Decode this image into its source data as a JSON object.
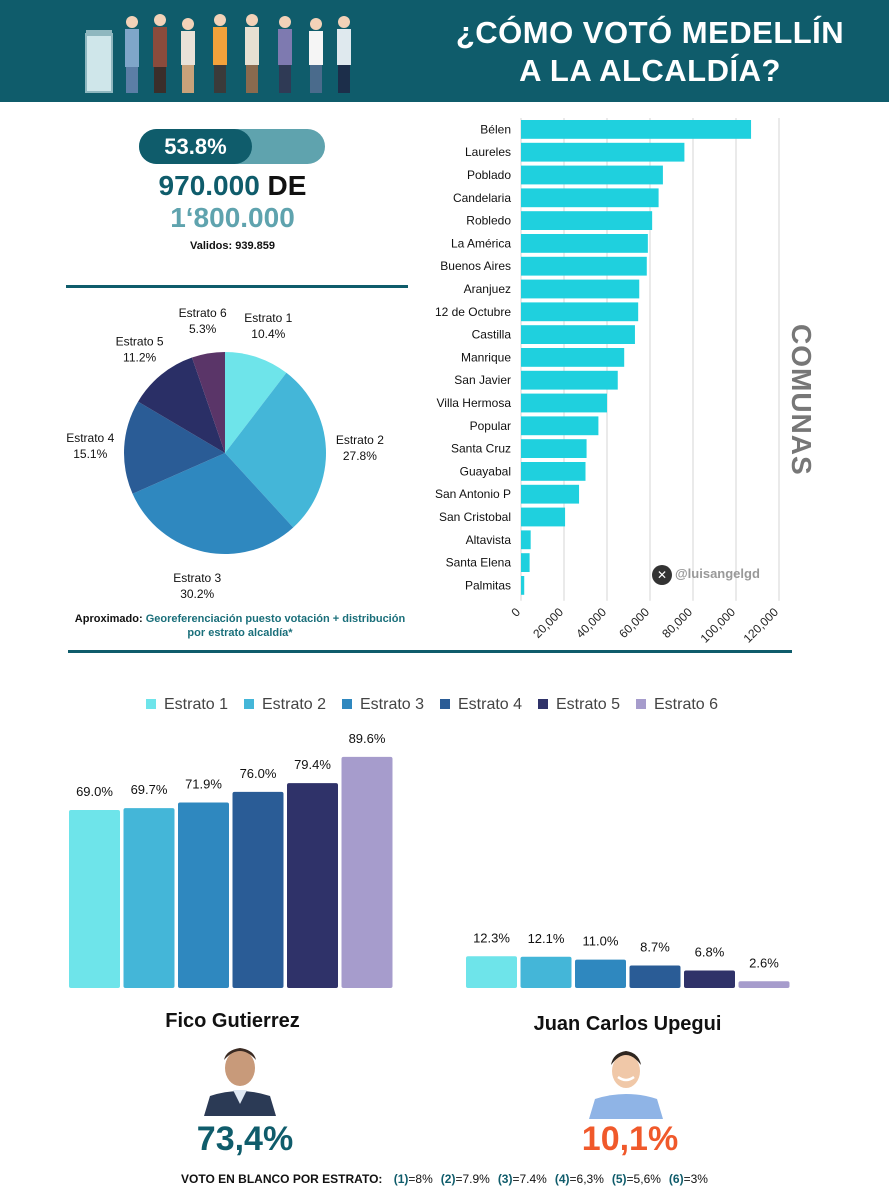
{
  "header": {
    "title_line1": "¿CÓMO VOTÓ MEDELLÍN",
    "title_line2": "A LA ALCALDÍA?"
  },
  "turnout": {
    "percent_label": "53.8%",
    "percent_value": 53.8,
    "votes": "970.000",
    "de": "DE",
    "total": "1‘800.000",
    "valid": "Validos: 939.859"
  },
  "note": {
    "prefix": "Aproximado:",
    "text": "Georeferenciación puesto votación + distribución por estrato alcaldía*"
  },
  "handle": "@luisangelgd",
  "handle_icon": "x-logo-icon",
  "comunas_label": "COMUNAS",
  "colors": {
    "header": "#0f5c6b",
    "bar_cyan": "#1fd0de",
    "fico_pct": "#0f5c6b",
    "upegui_pct": "#f0592b"
  },
  "chart_data": [
    {
      "type": "pie",
      "categories": [
        "Estrato 1",
        "Estrato 2",
        "Estrato 3",
        "Estrato 4",
        "Estrato 5",
        "Estrato 6"
      ],
      "labels": [
        "10.4%",
        "27.8%",
        "30.2%",
        "15.1%",
        "11.2%",
        "5.3%"
      ],
      "values": [
        10.4,
        27.8,
        30.2,
        15.1,
        11.2,
        5.3
      ],
      "colors": [
        "#6ee4ea",
        "#44b6d8",
        "#2f88bf",
        "#2a5c96",
        "#2a2f66",
        "#5a3568"
      ]
    },
    {
      "type": "bar",
      "orientation": "horizontal",
      "categories": [
        "Bélen",
        "Laureles",
        "Poblado",
        "Candelaria",
        "Robledo",
        "La América",
        "Buenos Aires",
        "Aranjuez",
        "12 de Octubre",
        "Castilla",
        "Manrique",
        "San Javier",
        "Villa Hermosa",
        "Popular",
        "Santa Cruz",
        "Guayabal",
        "San Antonio P",
        "San Cristobal",
        "Altavista",
        "Santa Elena",
        "Palmitas"
      ],
      "values": [
        107000,
        76000,
        66000,
        64000,
        61000,
        59000,
        58500,
        55000,
        54500,
        53000,
        48000,
        45000,
        40000,
        36000,
        30500,
        30000,
        27000,
        20500,
        4500,
        4000,
        1500
      ],
      "xticks": [
        "0",
        "20,000",
        "40,000",
        "60,000",
        "80,000",
        "100,000",
        "120,000"
      ],
      "xlim": [
        0,
        120000
      ],
      "ylabel": "COMUNAS",
      "grid": "vertical",
      "color": "#1fd0de"
    },
    {
      "type": "bar",
      "title": "Fico Gutierrez",
      "categories": [
        "Estrato 1",
        "Estrato 2",
        "Estrato 3",
        "Estrato 4",
        "Estrato 5",
        "Estrato 6"
      ],
      "values": [
        69.0,
        69.7,
        71.9,
        76.0,
        79.4,
        89.6
      ],
      "labels": [
        "69.0%",
        "69.7%",
        "71.9%",
        "76.0%",
        "79.4%",
        "89.6%"
      ],
      "colors": [
        "#6ee4ea",
        "#44b6d8",
        "#2f88bf",
        "#2a5c96",
        "#2f3269",
        "#a69ccc"
      ],
      "ylim": [
        0,
        100
      ],
      "total": "73,4%"
    },
    {
      "type": "bar",
      "title": "Juan Carlos Upegui",
      "categories": [
        "Estrato 1",
        "Estrato 2",
        "Estrato 3",
        "Estrato 4",
        "Estrato 5",
        "Estrato 6"
      ],
      "values": [
        12.3,
        12.1,
        11.0,
        8.7,
        6.8,
        2.6
      ],
      "labels": [
        "12.3%",
        "12.1%",
        "11.0%",
        "8.7%",
        "6.8%",
        "2.6%"
      ],
      "colors": [
        "#6ee4ea",
        "#44b6d8",
        "#2f88bf",
        "#2a5c96",
        "#2f3269",
        "#a69ccc"
      ],
      "ylim": [
        0,
        100
      ],
      "total": "10,1%"
    }
  ],
  "legend": {
    "items": [
      "Estrato 1",
      "Estrato 2",
      "Estrato 3",
      "Estrato 4",
      "Estrato 5",
      "Estrato 6"
    ],
    "colors": [
      "#6ee4ea",
      "#44b6d8",
      "#2f88bf",
      "#2a5c96",
      "#2f3269",
      "#a69ccc"
    ]
  },
  "candidates": {
    "fico": {
      "name": "Fico Gutierrez",
      "pct": "73,4%"
    },
    "upegui": {
      "name": "Juan Carlos Upegui",
      "pct": "10,1%"
    }
  },
  "footer": {
    "label": "VOTO EN BLANCO POR ESTRATO:",
    "items": [
      {
        "num": "(1)",
        "val": "=8%"
      },
      {
        "num": "(2)",
        "val": "=7.9%"
      },
      {
        "num": "(3)",
        "val": "=7.4%"
      },
      {
        "num": "(4)",
        "val": "=6,3%"
      },
      {
        "num": "(5)",
        "val": "=5,6%"
      },
      {
        "num": "(6)",
        "val": "=3%"
      }
    ]
  }
}
